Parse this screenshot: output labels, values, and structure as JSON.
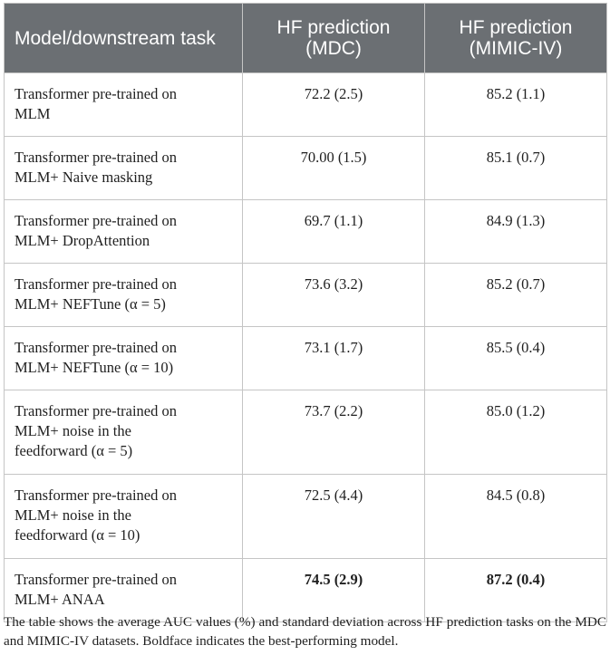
{
  "table": {
    "headers": [
      "Model/downstream task",
      "HF prediction (MDC)",
      "HF prediction (MIMIC-IV)"
    ],
    "rows": [
      {
        "model": [
          "Transformer pre-trained on",
          "MLM"
        ],
        "mdc": "72.2 (2.5)",
        "mimic": "85.2 (1.1)",
        "best": false
      },
      {
        "model": [
          "Transformer pre-trained on",
          "MLM+ Naive masking"
        ],
        "mdc": "70.00 (1.5)",
        "mimic": "85.1 (0.7)",
        "best": false
      },
      {
        "model": [
          "Transformer pre-trained on",
          "MLM+ DropAttention"
        ],
        "mdc": "69.7 (1.1)",
        "mimic": "84.9 (1.3)",
        "best": false
      },
      {
        "model": [
          "Transformer pre-trained on",
          "MLM+ NEFTune (α = 5)"
        ],
        "mdc": "73.6 (3.2)",
        "mimic": "85.2 (0.7)",
        "best": false
      },
      {
        "model": [
          "Transformer pre-trained on",
          "MLM+ NEFTune (α = 10)"
        ],
        "mdc": "73.1 (1.7)",
        "mimic": "85.5 (0.4)",
        "best": false
      },
      {
        "model": [
          "Transformer pre-trained on",
          "MLM+ noise in the",
          "feedforward (α = 5)"
        ],
        "mdc": "73.7 (2.2)",
        "mimic": "85.0 (1.2)",
        "best": false
      },
      {
        "model": [
          "Transformer pre-trained on",
          "MLM+ noise in the",
          "feedforward (α = 10)"
        ],
        "mdc": "72.5 (4.4)",
        "mimic": "84.5 (0.8)",
        "best": false
      },
      {
        "model": [
          "Transformer pre-trained on",
          "MLM+ ANAA"
        ],
        "mdc": "74.5 (2.9)",
        "mimic": "87.2 (0.4)",
        "best": true
      }
    ]
  },
  "caption": "The table shows the average AUC values (%) and standard deviation across HF prediction tasks on the MDC and MIMIC-IV datasets. Boldface indicates the best-performing model."
}
